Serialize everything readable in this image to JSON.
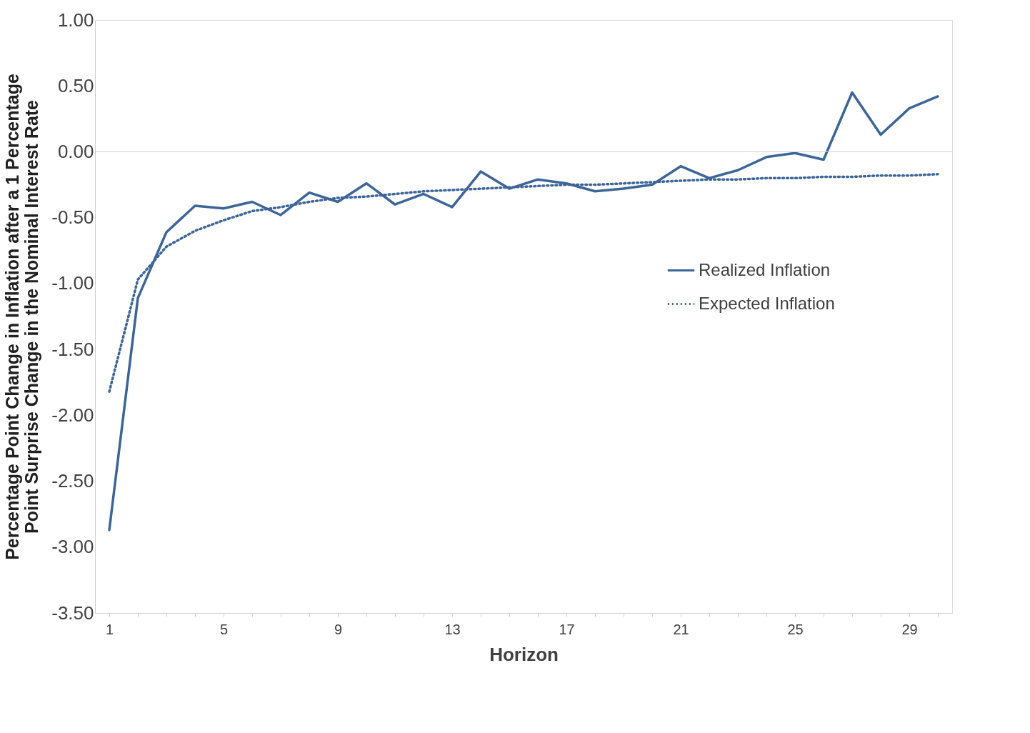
{
  "chart_data": {
    "type": "line",
    "xlabel": "Horizon",
    "ylabel": "Percentage Point Change in Inflation after a 1 Percentage\nPoint Surprise  Change in the Nominal Interest Rate",
    "x": [
      1,
      2,
      3,
      4,
      5,
      6,
      7,
      8,
      9,
      10,
      11,
      12,
      13,
      14,
      15,
      16,
      17,
      18,
      19,
      20,
      21,
      22,
      23,
      24,
      25,
      26,
      27,
      28,
      29,
      30
    ],
    "series": [
      {
        "name": "Realized Inflation",
        "color": "#3d6598",
        "line_style": "solid",
        "values": [
          -2.87,
          -1.11,
          -0.61,
          -0.41,
          -0.43,
          -0.38,
          -0.48,
          -0.31,
          -0.38,
          -0.24,
          -0.4,
          -0.32,
          -0.42,
          -0.15,
          -0.28,
          -0.21,
          -0.24,
          -0.3,
          -0.28,
          -0.25,
          -0.11,
          -0.2,
          -0.14,
          -0.04,
          -0.01,
          -0.06,
          0.45,
          0.13,
          0.33,
          0.42
        ]
      },
      {
        "name": "Expected Inflation",
        "color": "#3d6598",
        "line_style": "dotted",
        "values": [
          -1.82,
          -0.97,
          -0.72,
          -0.6,
          -0.52,
          -0.45,
          -0.42,
          -0.38,
          -0.35,
          -0.34,
          -0.32,
          -0.3,
          -0.29,
          -0.28,
          -0.27,
          -0.26,
          -0.25,
          -0.25,
          -0.24,
          -0.23,
          -0.22,
          -0.21,
          -0.21,
          -0.2,
          -0.2,
          -0.19,
          -0.19,
          -0.18,
          -0.18,
          -0.17
        ]
      }
    ],
    "xlim": [
      0.5,
      30.5
    ],
    "xticks": [
      1,
      {
        "value": 2,
        "label": null
      },
      {
        "value": 3,
        "label": null
      },
      {
        "value": 4,
        "label": null
      },
      5,
      {
        "value": 6,
        "label": null
      },
      {
        "value": 7,
        "label": null
      },
      {
        "value": 8,
        "label": null
      },
      9,
      {
        "value": 10,
        "label": null
      },
      {
        "value": 11,
        "label": null
      },
      {
        "value": 12,
        "label": null
      },
      13,
      {
        "value": 14,
        "label": null
      },
      {
        "value": 15,
        "label": null
      },
      {
        "value": 16,
        "label": null
      },
      17,
      {
        "value": 18,
        "label": null
      },
      {
        "value": 19,
        "label": null
      },
      {
        "value": 20,
        "label": null
      },
      21,
      {
        "value": 22,
        "label": null
      },
      {
        "value": 23,
        "label": null
      },
      {
        "value": 24,
        "label": null
      },
      25,
      {
        "value": 26,
        "label": null
      },
      {
        "value": 27,
        "label": null
      },
      {
        "value": 28,
        "label": null
      },
      29,
      {
        "value": 30,
        "label": null
      }
    ],
    "ylim": [
      -3.5,
      1
    ],
    "yticks": [
      {
        "value": 1,
        "label": "1.00"
      },
      {
        "value": 0.5,
        "label": "0.50"
      },
      {
        "value": 0,
        "label": "0.00"
      },
      {
        "value": -0.5,
        "label": "-0.50"
      },
      {
        "value": -1,
        "label": "-1.00"
      },
      {
        "value": -1.5,
        "label": "-1.50"
      },
      {
        "value": -2,
        "label": "-2.00"
      },
      {
        "value": -2.5,
        "label": "-2.50"
      },
      {
        "value": -3,
        "label": "-3.00"
      },
      {
        "value": -3.5,
        "label": "-3.50"
      }
    ],
    "ref_lines": [
      {
        "axis": "y",
        "value": 0,
        "color": "#d0d0d0"
      }
    ],
    "grid": false,
    "legend": "right"
  }
}
